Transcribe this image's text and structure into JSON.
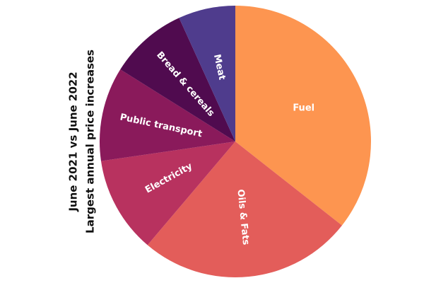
{
  "chart_data": {
    "type": "pie",
    "title": "Largest annual price increases",
    "subtitle": "June 2021 vs June 2022",
    "categories": [
      "Fuel",
      "Oils & Fats",
      "Electricity",
      "Public transport",
      "Bread & cereals",
      "Meat"
    ],
    "values": [
      35.6,
      25.6,
      11.5,
      11.2,
      9.3,
      6.8
    ],
    "colors": [
      "#fd9550",
      "#e35d5a",
      "#b8325f",
      "#8a1a5b",
      "#500b4f",
      "#4f3c8d"
    ]
  }
}
